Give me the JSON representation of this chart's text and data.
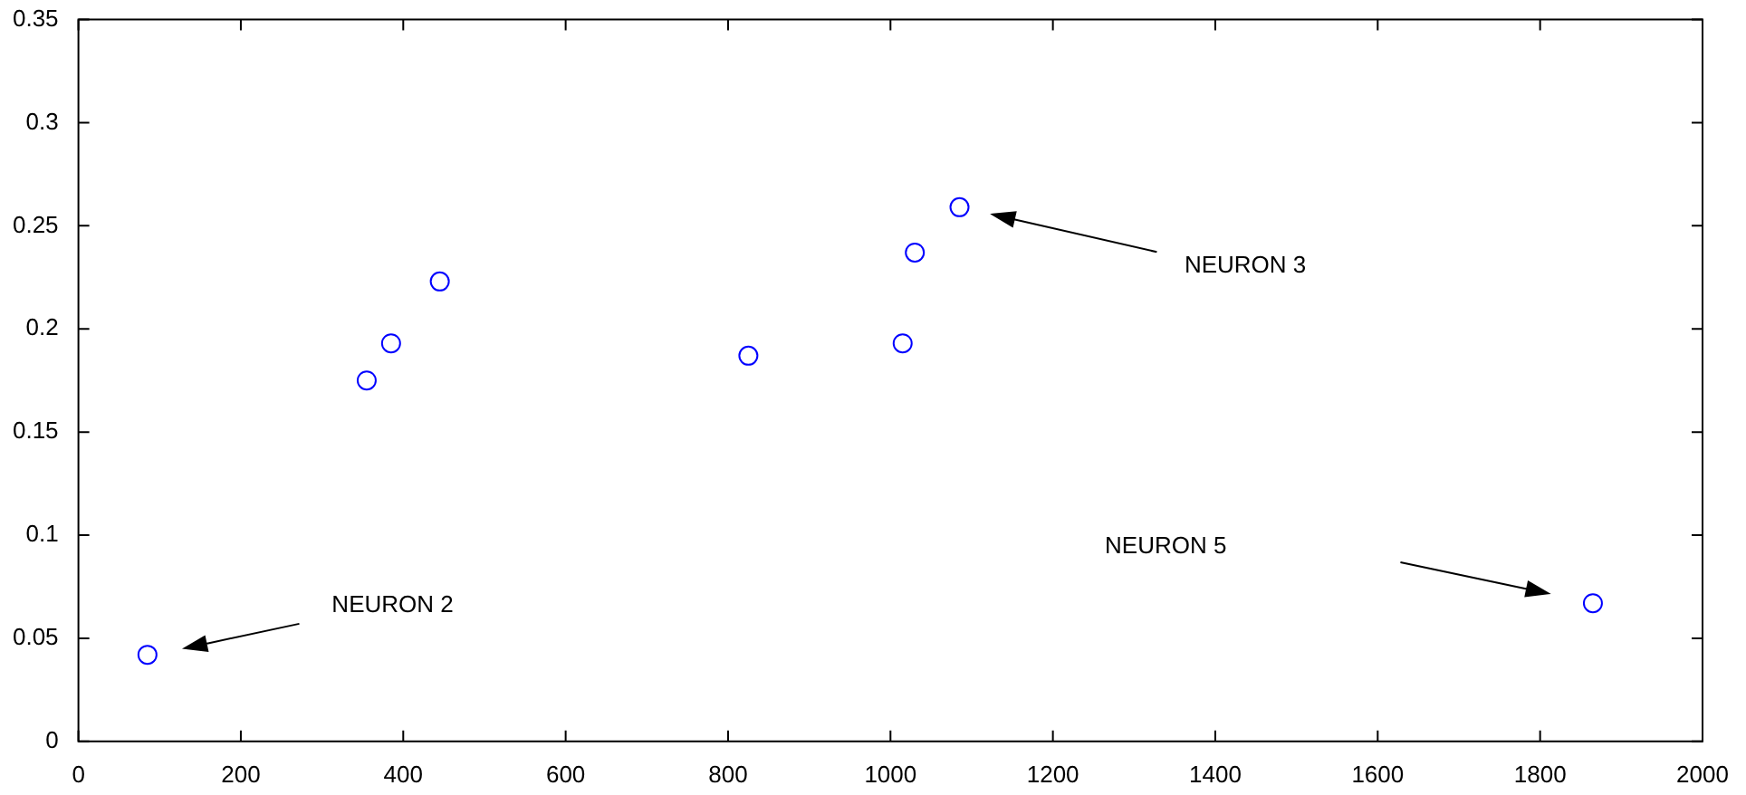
{
  "chart_data": {
    "type": "scatter",
    "x": [
      85,
      355,
      385,
      445,
      825,
      1015,
      1030,
      1085,
      1865
    ],
    "values": [
      0.042,
      0.175,
      0.193,
      0.223,
      0.187,
      0.193,
      0.237,
      0.259,
      0.067
    ],
    "color": "#0000ff",
    "marker": "circle",
    "xlim": [
      0,
      2000
    ],
    "xticks": [
      0,
      200,
      400,
      600,
      800,
      1000,
      1200,
      1400,
      1600,
      1800,
      2000
    ],
    "ylim": [
      0,
      0.35
    ],
    "yticks": [
      0,
      0.05,
      0.1,
      0.15,
      0.2,
      0.25,
      0.3,
      0.35
    ],
    "annotations": [
      "NEURON 2",
      "NEURON 3",
      "NEURON 5"
    ]
  }
}
